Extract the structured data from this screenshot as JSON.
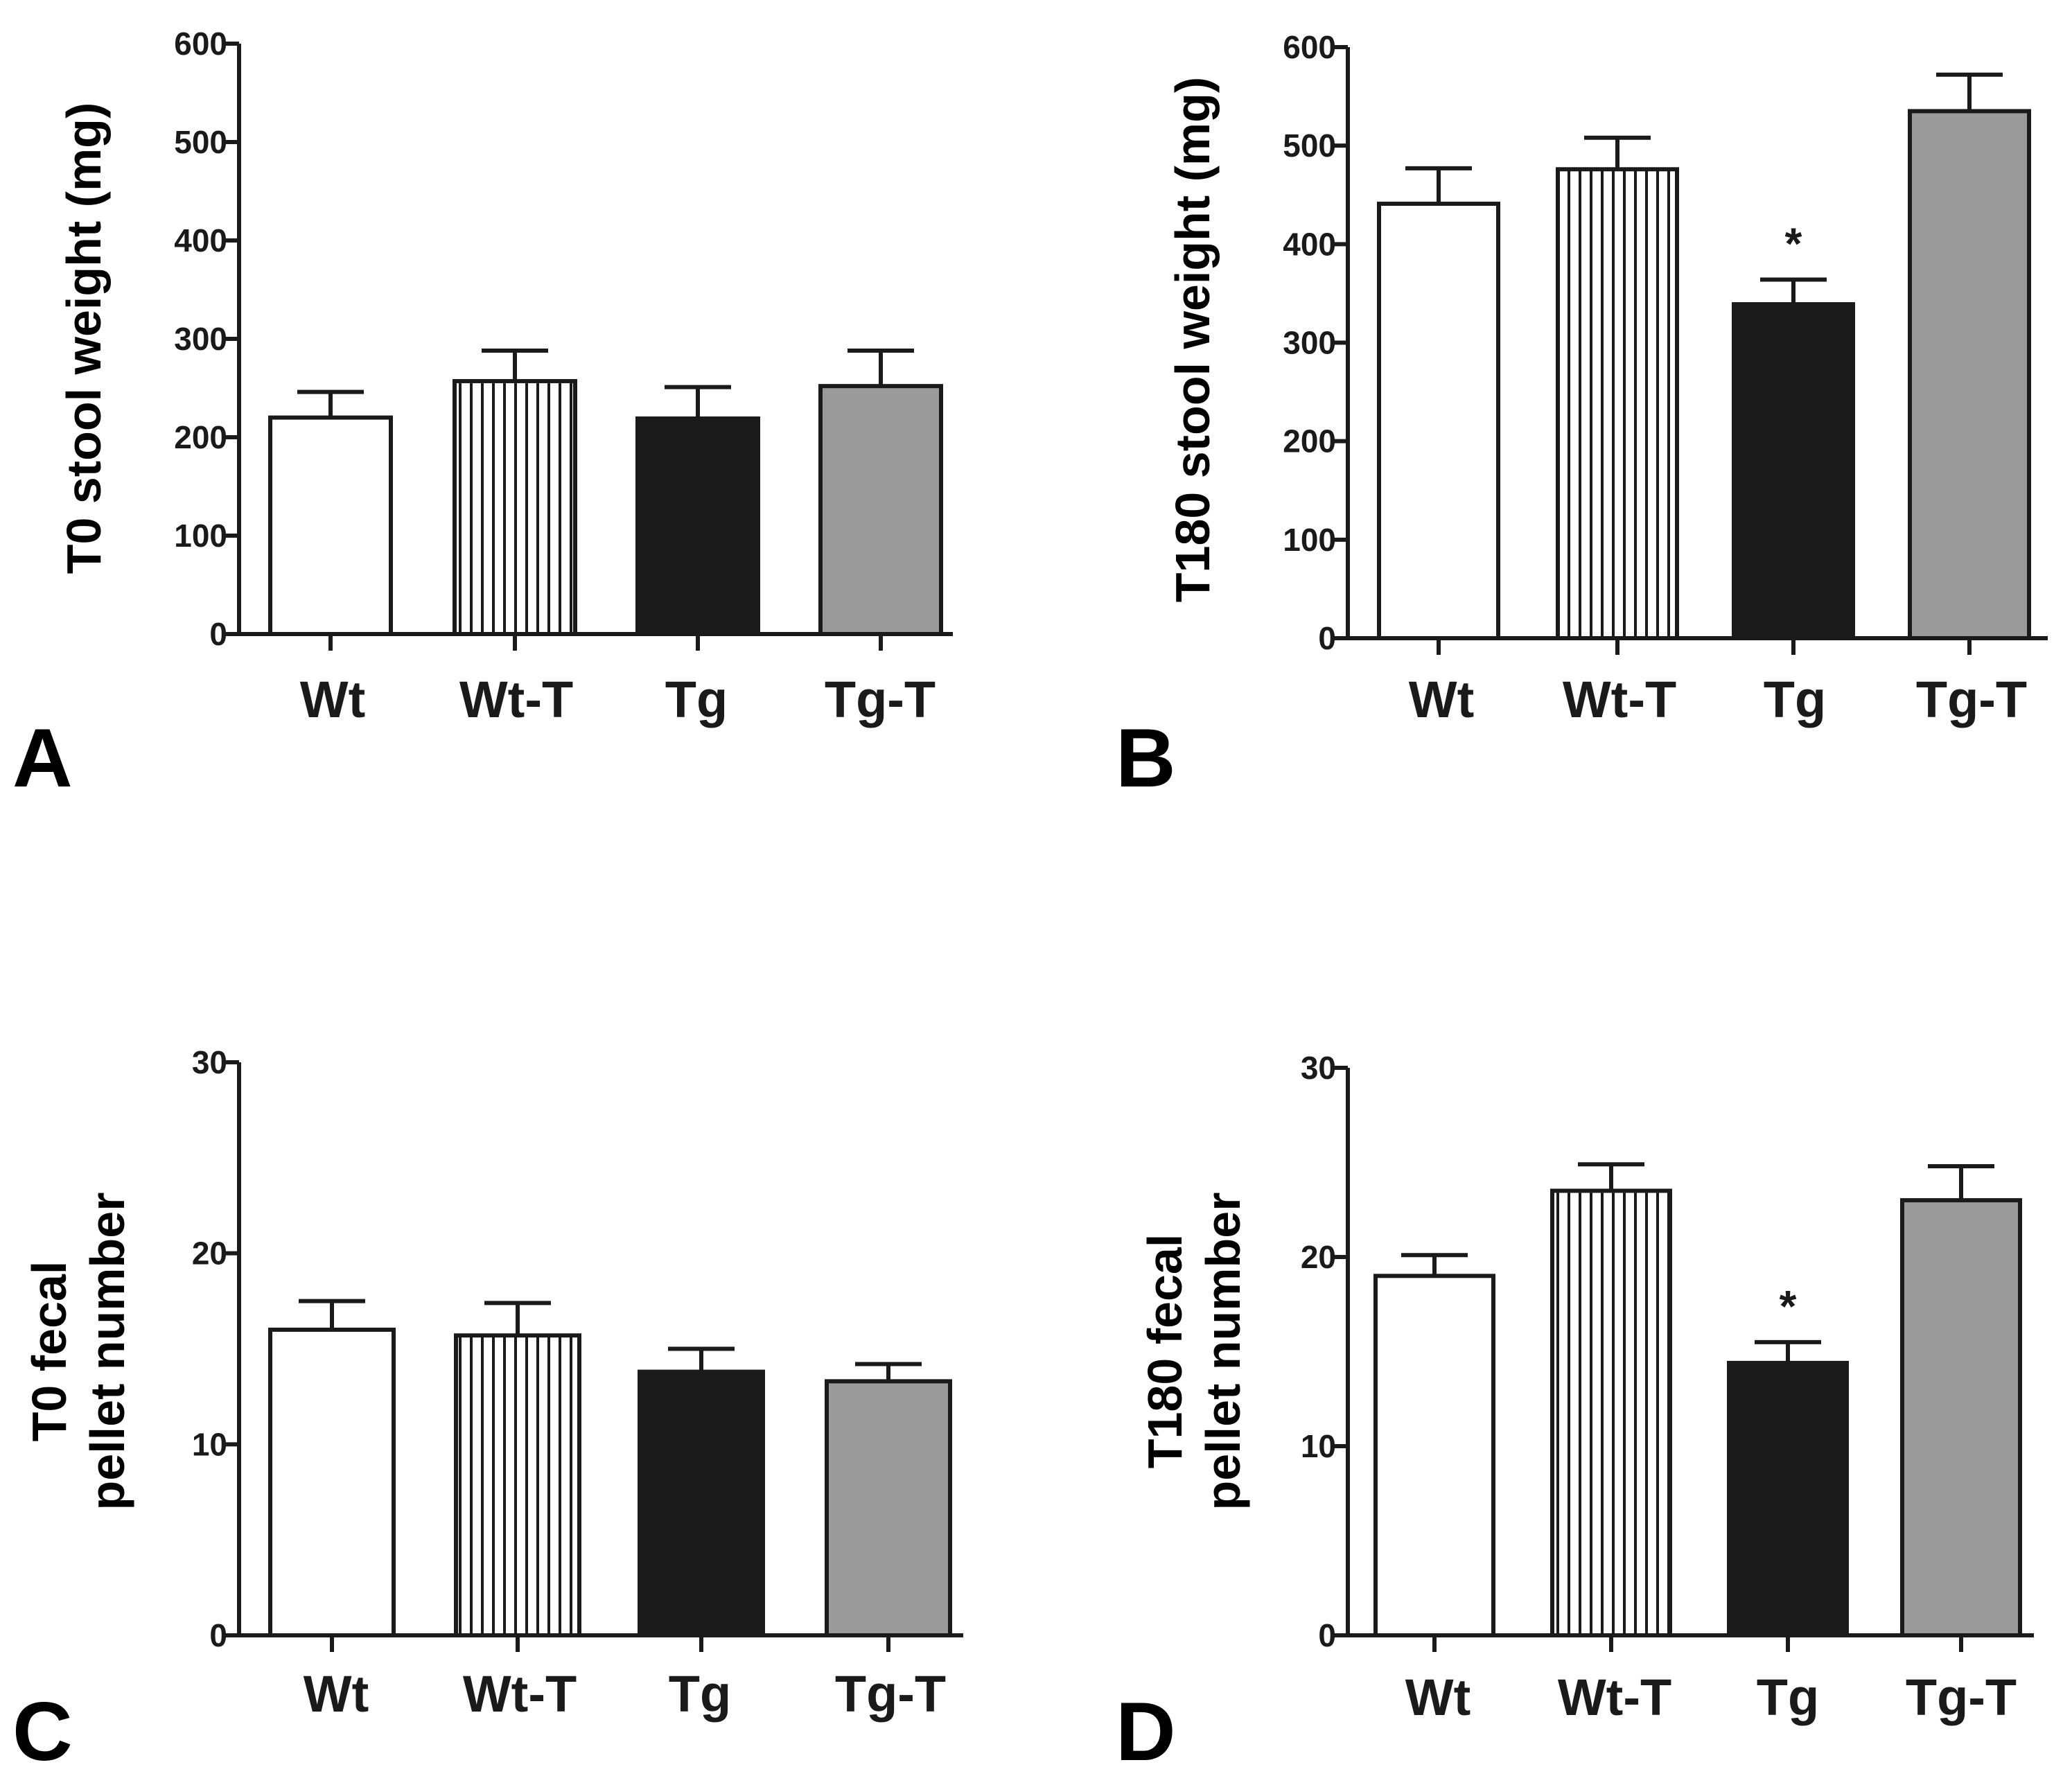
{
  "figure": {
    "categories": [
      "Wt",
      "Wt-T",
      "Tg",
      "Tg-T"
    ],
    "bar_fills": [
      "#ffffff",
      "stripes",
      "#1a1a1a",
      "#9a9a9a"
    ],
    "colors": {
      "axis": "#1a1a1a",
      "text": "#000000",
      "white_bar": "#ffffff",
      "black_bar": "#1a1a1a",
      "gray_bar": "#9a9a9a",
      "stripe": "#1a1a1a"
    }
  },
  "chart_data": [
    {
      "panel": "A",
      "type": "bar",
      "ylabel": "T0 stool weight (mg)",
      "ylabel_lines": [
        "T0 stool weight (mg)"
      ],
      "ylim": [
        0,
        600
      ],
      "ticks": [
        0,
        100,
        200,
        300,
        400,
        500,
        600
      ],
      "categories": [
        "Wt",
        "Wt-T",
        "Tg",
        "Tg-T"
      ],
      "values": [
        220,
        257,
        219,
        252
      ],
      "errors": [
        26,
        31,
        32,
        36
      ],
      "significance": [
        "",
        "",
        "",
        ""
      ]
    },
    {
      "panel": "B",
      "type": "bar",
      "ylabel": "T180 stool weight (mg)",
      "ylabel_lines": [
        "T180 stool weight (mg)"
      ],
      "ylim": [
        0,
        600
      ],
      "ticks": [
        0,
        100,
        200,
        300,
        400,
        500,
        600
      ],
      "categories": [
        "Wt",
        "Wt-T",
        "Tg",
        "Tg-T"
      ],
      "values": [
        441,
        476,
        339,
        535
      ],
      "errors": [
        36,
        32,
        25,
        37
      ],
      "significance": [
        "",
        "",
        "*",
        ""
      ]
    },
    {
      "panel": "C",
      "type": "bar",
      "ylabel": "T0 fecal pellet number",
      "ylabel_lines": [
        "T0 fecal",
        "pellet number"
      ],
      "ylim": [
        0,
        30
      ],
      "ticks": [
        0,
        10,
        20,
        30
      ],
      "categories": [
        "Wt",
        "Wt-T",
        "Tg",
        "Tg-T"
      ],
      "values": [
        16.0,
        15.7,
        13.8,
        13.3
      ],
      "errors": [
        1.5,
        1.7,
        1.2,
        0.9
      ],
      "significance": [
        "",
        "",
        "",
        ""
      ]
    },
    {
      "panel": "D",
      "type": "bar",
      "ylabel": "T180 fecal pellet number",
      "ylabel_lines": [
        "T180 fecal",
        "pellet number"
      ],
      "ylim": [
        0,
        30
      ],
      "ticks": [
        0,
        10,
        20,
        30
      ],
      "categories": [
        "Wt",
        "Wt-T",
        "Tg",
        "Tg-T"
      ],
      "values": [
        19.0,
        23.5,
        14.4,
        23.0
      ],
      "errors": [
        1.1,
        1.4,
        1.1,
        1.8
      ],
      "significance": [
        "",
        "",
        "*",
        ""
      ]
    }
  ]
}
